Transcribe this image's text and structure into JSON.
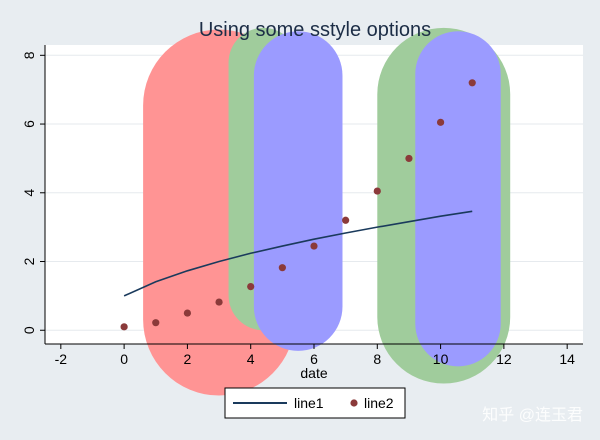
{
  "chart_data": {
    "type": "line",
    "title": "Using some sstyle options",
    "xlabel": "date",
    "ylabel": "",
    "xlim": [
      -2.5,
      14.5
    ],
    "ylim": [
      -0.4,
      8.3
    ],
    "x_ticks": [
      "-2",
      "0",
      "2",
      "4",
      "6",
      "8",
      "10",
      "12",
      "14"
    ],
    "y_ticks": [
      "0",
      "2",
      "4",
      "6",
      "8"
    ],
    "grid": true,
    "legend_placement": "bottom-center",
    "series": [
      {
        "name": "line1",
        "type": "line",
        "color": "#1a3a5c",
        "x": [
          0,
          1,
          2,
          3,
          4,
          5,
          6,
          7,
          8,
          9,
          10,
          11
        ],
        "y": [
          1.0,
          1.41,
          1.73,
          2.0,
          2.24,
          2.45,
          2.65,
          2.83,
          3.0,
          3.16,
          3.32,
          3.46
        ]
      },
      {
        "name": "line2",
        "type": "scatter",
        "color": "#8b3a3a",
        "x": [
          0,
          1,
          2,
          3,
          4,
          5,
          6,
          7,
          8,
          9,
          10,
          11
        ],
        "y": [
          0.1,
          0.22,
          0.5,
          0.82,
          1.27,
          1.82,
          2.45,
          3.2,
          4.05,
          5.0,
          6.05,
          7.2
        ]
      }
    ],
    "highlight_bands": [
      {
        "x_from": 0.6,
        "x_to": 5.4,
        "y_from": -1.9,
        "y_to": 8.75,
        "color": "#ff9494"
      },
      {
        "x_from": 3.3,
        "x_to": 5.5,
        "y_from": 0.0,
        "y_to": 8.8,
        "color": "#a0cc9c"
      },
      {
        "x_from": 8.0,
        "x_to": 12.2,
        "y_from": -1.55,
        "y_to": 8.8,
        "color": "#a0cc9c"
      },
      {
        "x_from": 4.1,
        "x_to": 6.9,
        "y_from": -0.6,
        "y_to": 8.7,
        "color": "#9b9bff"
      },
      {
        "x_from": 9.2,
        "x_to": 11.9,
        "y_from": -1.05,
        "y_to": 8.7,
        "color": "#9b9bff"
      }
    ]
  },
  "watermark": "知乎 @连玉君"
}
